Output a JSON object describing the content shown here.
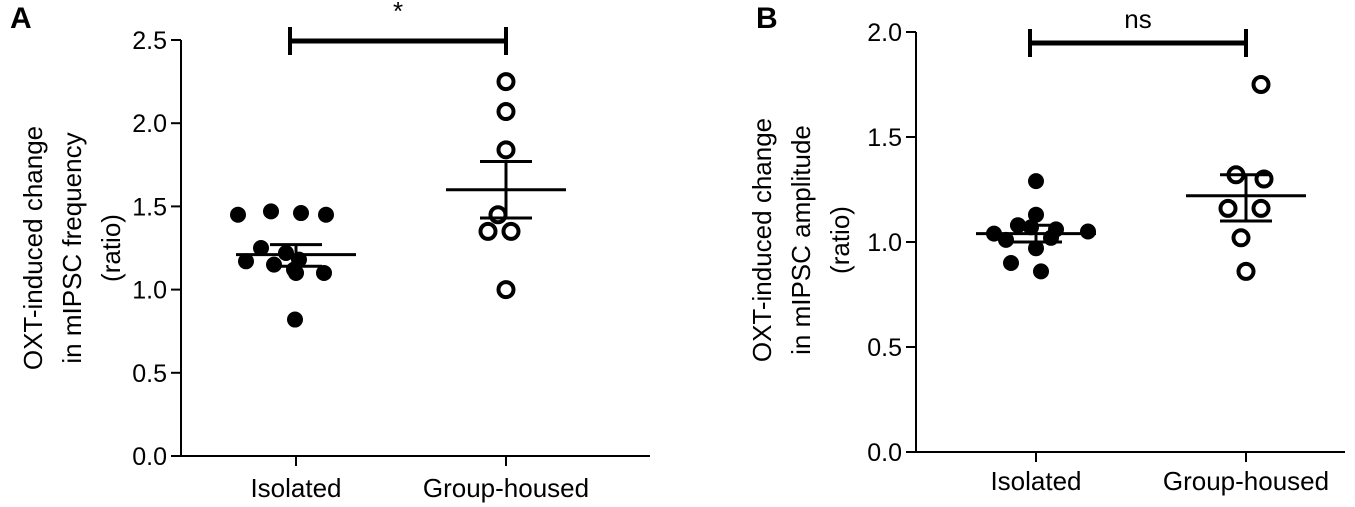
{
  "chart_data": [
    {
      "type": "scatter",
      "panel_label": "A",
      "title": "",
      "xlabel": "",
      "ylabel_lines": [
        "OXT-induced change",
        "in mIPSC frequency",
        "(ratio)"
      ],
      "ylim": [
        0,
        2.5
      ],
      "yticks": [
        "0.0",
        "0.5",
        "1.0",
        "1.5",
        "2.0",
        "2.5"
      ],
      "categories": [
        "Isolated",
        "Group-housed"
      ],
      "series": [
        {
          "category": "Isolated",
          "marker": "filled",
          "values": [
            1.45,
            1.47,
            1.46,
            1.45,
            1.25,
            1.22,
            1.17,
            1.15,
            1.18,
            1.12,
            1.1,
            1.1,
            0.82
          ],
          "mean": 1.21,
          "sem_low": 1.14,
          "sem_high": 1.27
        },
        {
          "category": "Group-housed",
          "marker": "open",
          "values": [
            2.25,
            2.07,
            1.84,
            1.45,
            1.35,
            1.35,
            1.0
          ],
          "mean": 1.6,
          "sem_low": 1.43,
          "sem_high": 1.77
        }
      ],
      "significance": "*"
    },
    {
      "type": "scatter",
      "panel_label": "B",
      "title": "",
      "xlabel": "",
      "ylabel_lines": [
        "OXT-induced change",
        "in mIPSC amplitude",
        "(ratio)"
      ],
      "ylim": [
        0,
        2.0
      ],
      "yticks": [
        "0.0",
        "0.5",
        "1.0",
        "1.5",
        "2.0"
      ],
      "categories": [
        "Isolated",
        "Group-housed"
      ],
      "series": [
        {
          "category": "Isolated",
          "marker": "filled",
          "values": [
            1.29,
            1.13,
            1.08,
            1.06,
            1.07,
            1.05,
            1.04,
            1.02,
            1.01,
            0.97,
            0.9,
            0.86
          ],
          "mean": 1.04,
          "sem_low": 1.0,
          "sem_high": 1.08
        },
        {
          "category": "Group-housed",
          "marker": "open",
          "values": [
            1.75,
            1.32,
            1.3,
            1.16,
            1.16,
            1.02,
            0.86
          ],
          "mean": 1.22,
          "sem_low": 1.1,
          "sem_high": 1.32
        }
      ],
      "significance": "ns"
    }
  ]
}
